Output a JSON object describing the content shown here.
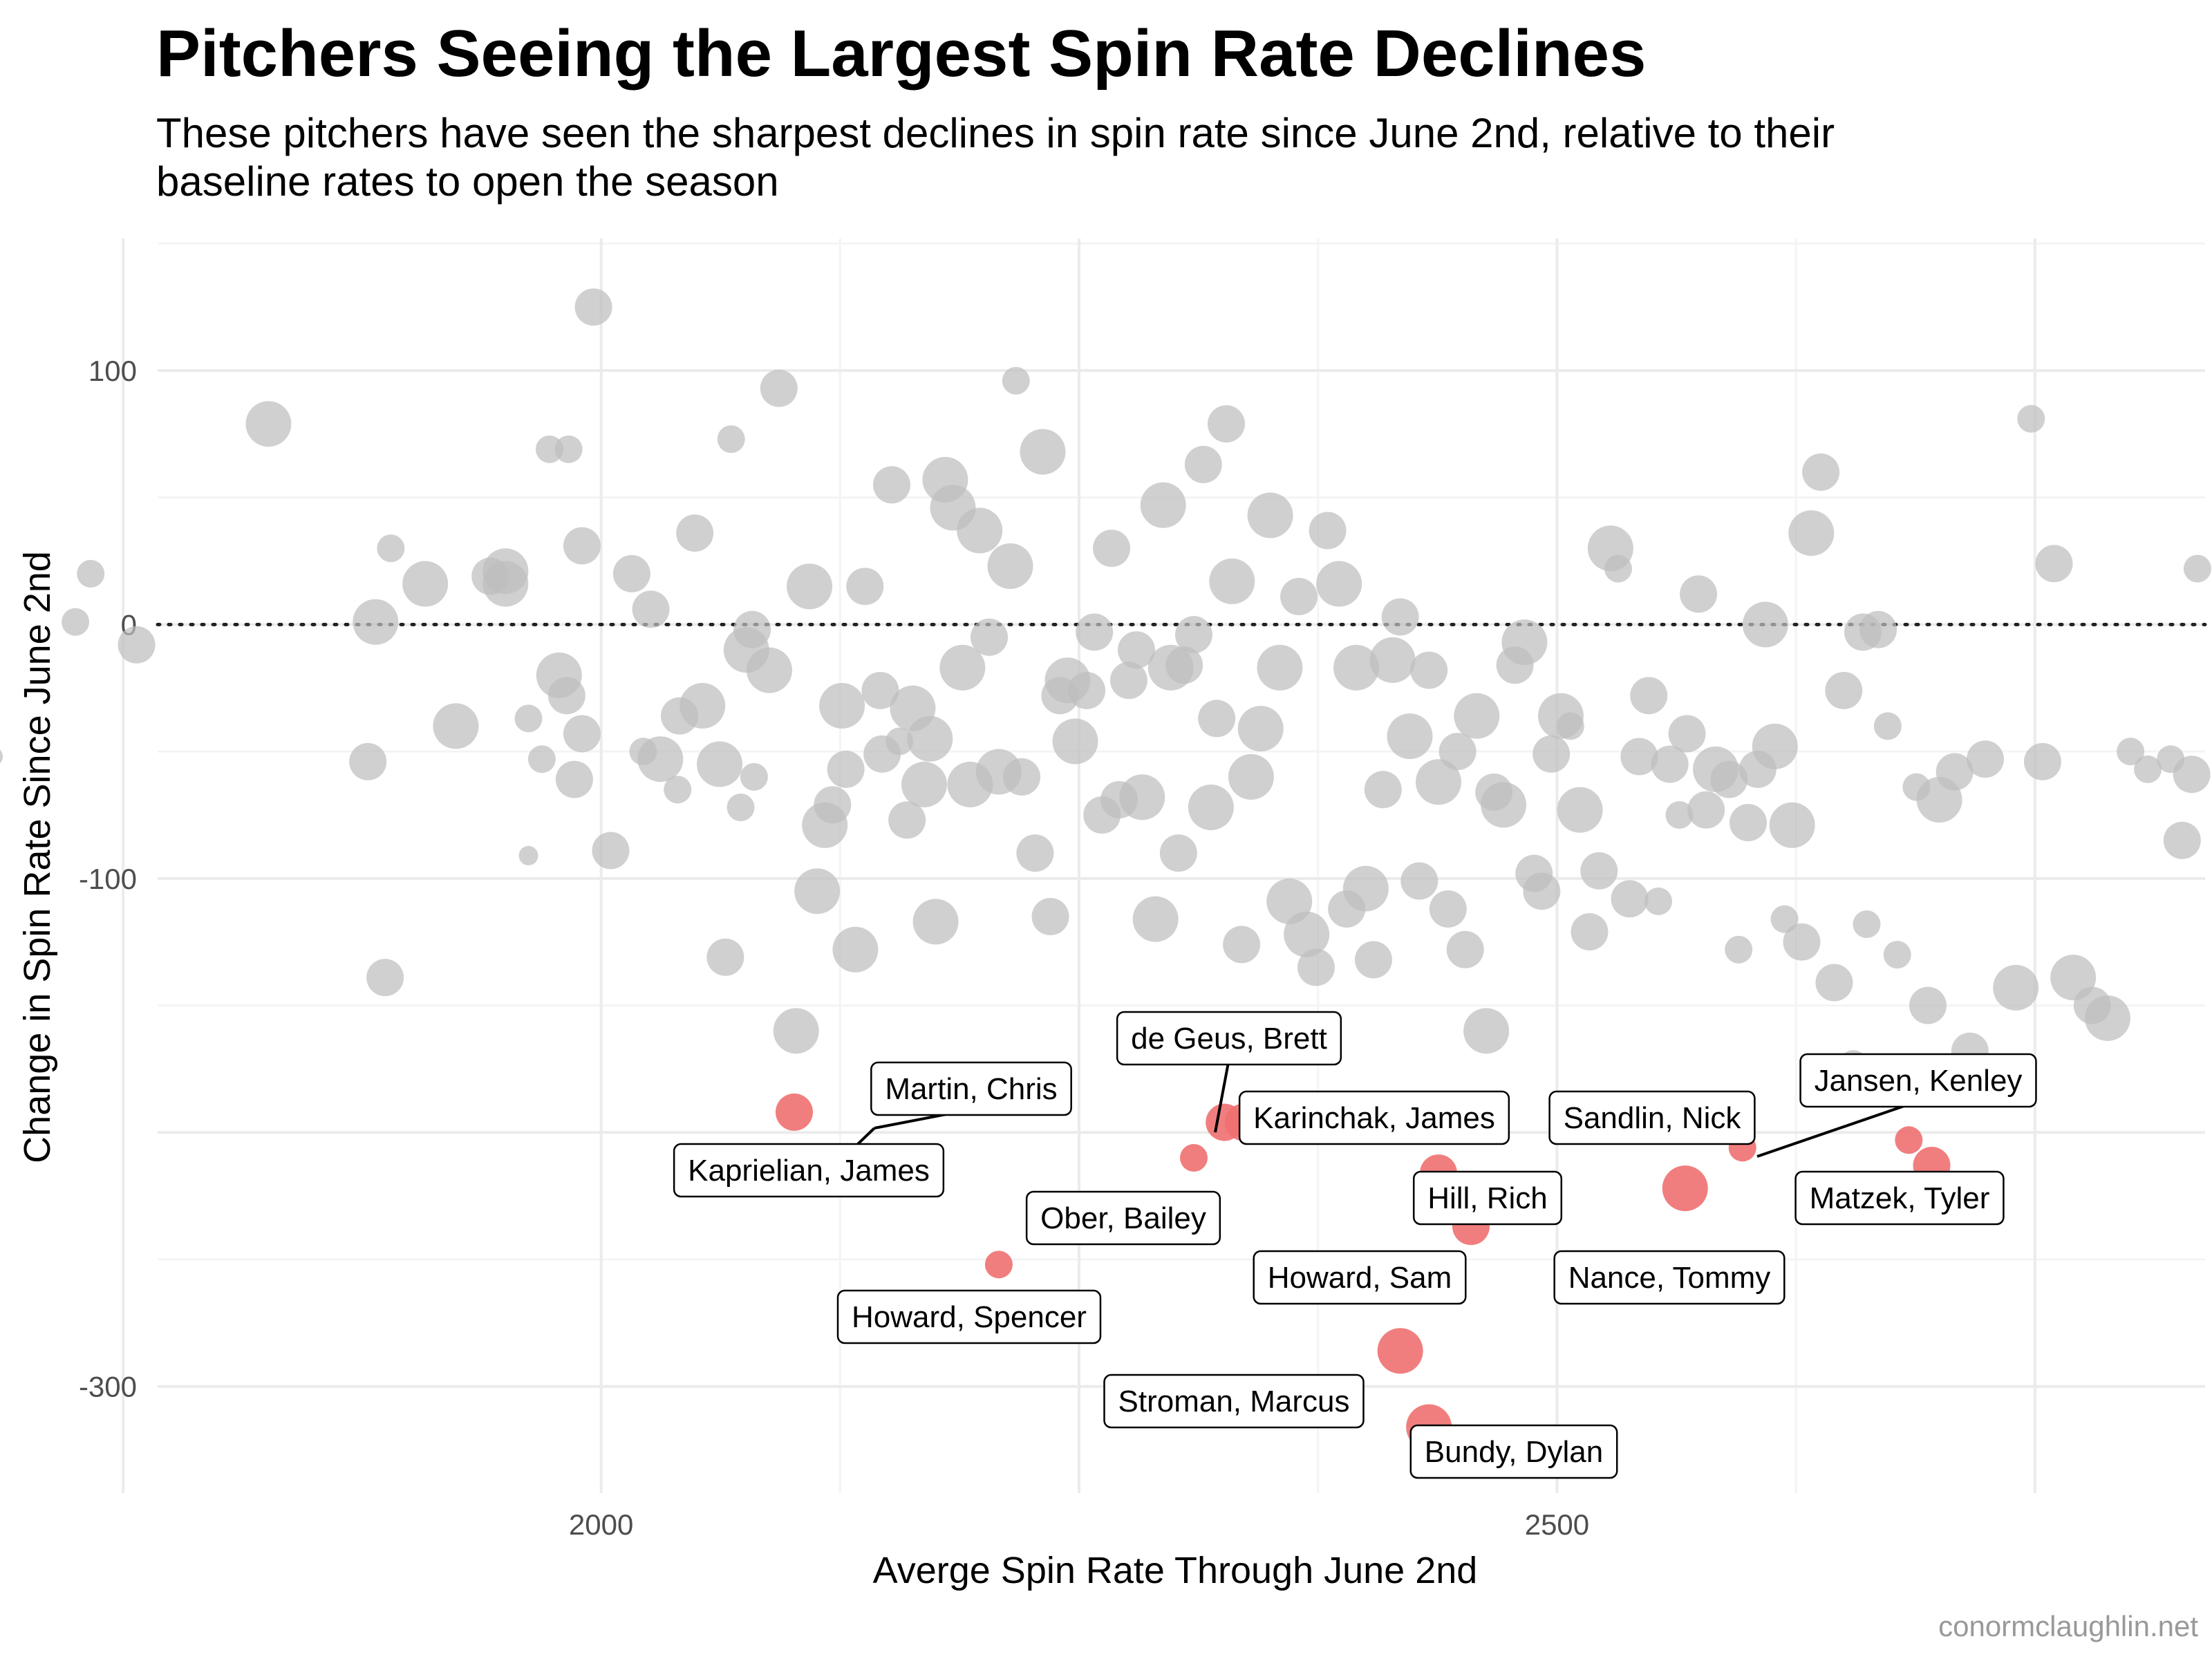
{
  "chart_data": {
    "type": "scatter",
    "title": "Pitchers Seeing the Largest Spin Rate Declines",
    "subtitle_lines": [
      "These pitchers have seen the sharpest declines in spin rate since June 2nd, relative to their",
      "baseline rates to open the season"
    ],
    "xlabel": "Averge Spin Rate Through June 2nd",
    "ylabel": "Change in Spin Rate Since June 2nd",
    "caption": "conormclaughlin.net",
    "xlim": [
      1768,
      2839
    ],
    "ylim": [
      -342,
      152
    ],
    "x_ticks": [
      2000,
      2500
    ],
    "x_tick_labels": [
      "2000",
      "2500"
    ],
    "y_ticks": [
      100,
      0,
      -100,
      -300
    ],
    "y_tick_labels": [
      "100",
      "0",
      "-100",
      "-300"
    ],
    "grid": true,
    "reference_line_y": 0,
    "colors": {
      "background": "#ffffff",
      "others": "#bebebe",
      "highlight": "#f07070",
      "grid_major": "#ebebeb",
      "grid_minor": "#f4f4f4"
    },
    "others": [
      [
        1682,
        -52,
        1
      ],
      [
        1725,
        1,
        2
      ],
      [
        1733,
        20,
        2
      ],
      [
        1757,
        -8,
        3
      ],
      [
        1826,
        79,
        4
      ],
      [
        1878,
        -54,
        3
      ],
      [
        1882,
        1,
        4
      ],
      [
        1887,
        -139,
        3
      ],
      [
        1890,
        30,
        2
      ],
      [
        1908,
        16,
        4
      ],
      [
        1924,
        -40,
        4
      ],
      [
        1942,
        19,
        3
      ],
      [
        1950,
        21,
        4
      ],
      [
        1962,
        -37,
        2
      ],
      [
        1969,
        -53,
        2
      ],
      [
        1973,
        69,
        2
      ],
      [
        1978,
        -20,
        4
      ],
      [
        1982,
        -28,
        3
      ],
      [
        1983,
        69,
        2
      ],
      [
        1986,
        -61,
        3
      ],
      [
        1990,
        -43,
        3
      ],
      [
        1990,
        31,
        3
      ],
      [
        1996,
        125,
        3
      ],
      [
        1962,
        -91,
        1
      ],
      [
        1950,
        16,
        4
      ],
      [
        2005,
        -89,
        3
      ],
      [
        2016,
        20,
        3
      ],
      [
        2022,
        -50,
        2
      ],
      [
        2026,
        6,
        3
      ],
      [
        2031,
        -53,
        4
      ],
      [
        2040,
        -65,
        2
      ],
      [
        2041,
        -36,
        3
      ],
      [
        2049,
        36,
        3
      ],
      [
        2053,
        -32,
        4
      ],
      [
        2062,
        -55,
        4
      ],
      [
        2065,
        -131,
        3
      ],
      [
        2068,
        73,
        2
      ],
      [
        2073,
        -72,
        2
      ],
      [
        2076,
        -10,
        4
      ],
      [
        2079,
        -2,
        3
      ],
      [
        2080,
        -60,
        2
      ],
      [
        2088,
        -18,
        4
      ],
      [
        2093,
        93,
        3
      ],
      [
        2102,
        -160,
        4
      ],
      [
        2109,
        15,
        4
      ],
      [
        2113,
        -105,
        4
      ],
      [
        2117,
        -79,
        4
      ],
      [
        2121,
        -71,
        3
      ],
      [
        2126,
        -32,
        4
      ],
      [
        2128,
        -57,
        3
      ],
      [
        2133,
        -128,
        4
      ],
      [
        2138,
        15,
        3
      ],
      [
        2146,
        -26,
        3
      ],
      [
        2147,
        -51,
        3
      ],
      [
        2152,
        55,
        3
      ],
      [
        2156,
        -46,
        2
      ],
      [
        2160,
        -77,
        3
      ],
      [
        2163,
        -33,
        4
      ],
      [
        2169,
        -63,
        4
      ],
      [
        2172,
        -45,
        4
      ],
      [
        2175,
        -117,
        4
      ],
      [
        2180,
        57,
        4
      ],
      [
        2184,
        46,
        4
      ],
      [
        2189,
        -17,
        4
      ],
      [
        2193,
        -63,
        4
      ],
      [
        2198,
        37,
        4
      ],
      [
        2203,
        -5,
        3
      ],
      [
        2208,
        -58,
        4
      ],
      [
        2214,
        23,
        4
      ],
      [
        2217,
        96,
        2
      ],
      [
        2220,
        -60,
        3
      ],
      [
        2227,
        -90,
        3
      ],
      [
        2231,
        68,
        4
      ],
      [
        2235,
        -115,
        3
      ],
      [
        2240,
        -28,
        3
      ],
      [
        2244,
        -22,
        4
      ],
      [
        2248,
        -46,
        4
      ],
      [
        2254,
        -26,
        3
      ],
      [
        2258,
        -3,
        3
      ],
      [
        2262,
        -75,
        3
      ],
      [
        2267,
        30,
        3
      ],
      [
        2271,
        -69,
        3
      ],
      [
        2276,
        -22,
        3
      ],
      [
        2280,
        -10,
        3
      ],
      [
        2283,
        -68,
        4
      ],
      [
        2290,
        -116,
        4
      ],
      [
        2294,
        47,
        4
      ],
      [
        2298,
        -17,
        4
      ],
      [
        2302,
        -90,
        3
      ],
      [
        2305,
        -16,
        3
      ],
      [
        2310,
        -4,
        3
      ],
      [
        2315,
        63,
        3
      ],
      [
        2319,
        -72,
        4
      ],
      [
        2322,
        -37,
        3
      ],
      [
        2327,
        79,
        3
      ],
      [
        2330,
        17,
        4
      ],
      [
        2335,
        -126,
        3
      ],
      [
        2340,
        -60,
        4
      ],
      [
        2345,
        -41,
        4
      ],
      [
        2350,
        43,
        4
      ],
      [
        2355,
        -17,
        4
      ],
      [
        2360,
        -109,
        4
      ],
      [
        2365,
        11,
        3
      ],
      [
        2369,
        -122,
        4
      ],
      [
        2374,
        -135,
        3
      ],
      [
        2380,
        37,
        3
      ],
      [
        2386,
        16,
        4
      ],
      [
        2390,
        -112,
        3
      ],
      [
        2395,
        -17,
        4
      ],
      [
        2400,
        -104,
        4
      ],
      [
        2404,
        -132,
        3
      ],
      [
        2409,
        -65,
        3
      ],
      [
        2414,
        -14,
        4
      ],
      [
        2418,
        3,
        3
      ],
      [
        2423,
        -44,
        4
      ],
      [
        2428,
        -101,
        3
      ],
      [
        2433,
        -18,
        3
      ],
      [
        2438,
        -62,
        4
      ],
      [
        2443,
        -112,
        3
      ],
      [
        2448,
        -50,
        3
      ],
      [
        2452,
        -128,
        3
      ],
      [
        2458,
        -36,
        4
      ],
      [
        2463,
        -160,
        4
      ],
      [
        2467,
        -66,
        3
      ],
      [
        2472,
        -71,
        4
      ],
      [
        2478,
        -16,
        3
      ],
      [
        2483,
        -7,
        4
      ],
      [
        2488,
        -98,
        3
      ],
      [
        2492,
        -105,
        3
      ],
      [
        2497,
        -51,
        3
      ],
      [
        2502,
        -36,
        4
      ],
      [
        2507,
        -40,
        2
      ],
      [
        2512,
        -73,
        4
      ],
      [
        2517,
        -121,
        3
      ],
      [
        2522,
        -97,
        3
      ],
      [
        2528,
        30,
        4
      ],
      [
        2532,
        22,
        2
      ],
      [
        2538,
        -108,
        3
      ],
      [
        2543,
        -52,
        3
      ],
      [
        2548,
        -28,
        3
      ],
      [
        2553,
        -109,
        2
      ],
      [
        2559,
        -55,
        3
      ],
      [
        2564,
        -75,
        2
      ],
      [
        2568,
        -43,
        3
      ],
      [
        2574,
        12,
        3
      ],
      [
        2578,
        -73,
        3
      ],
      [
        2583,
        -57,
        4
      ],
      [
        2590,
        -61,
        3
      ],
      [
        2595,
        -128,
        2
      ],
      [
        2600,
        -78,
        3
      ],
      [
        2605,
        -57,
        3
      ],
      [
        2609,
        0,
        4
      ],
      [
        2614,
        -48,
        4
      ],
      [
        2619,
        -116,
        2
      ],
      [
        2623,
        -79,
        4
      ],
      [
        2628,
        -125,
        3
      ],
      [
        2633,
        36,
        4
      ],
      [
        2638,
        60,
        3
      ],
      [
        2645,
        -141,
        3
      ],
      [
        2650,
        -26,
        3
      ],
      [
        2655,
        -173,
        2
      ],
      [
        2660,
        -3,
        3
      ],
      [
        2662,
        -118,
        2
      ],
      [
        2668,
        -2,
        3
      ],
      [
        2673,
        -40,
        2
      ],
      [
        2678,
        -130,
        2
      ],
      [
        2688,
        -64,
        2
      ],
      [
        2694,
        -150,
        3
      ],
      [
        2700,
        -69,
        4
      ],
      [
        2708,
        -58,
        3
      ],
      [
        2716,
        -168,
        3
      ],
      [
        2724,
        -53,
        3
      ],
      [
        2740,
        -143,
        4
      ],
      [
        2748,
        81,
        2
      ],
      [
        2754,
        -54,
        3
      ],
      [
        2760,
        24,
        3
      ],
      [
        2770,
        -139,
        4
      ],
      [
        2780,
        -150,
        3
      ],
      [
        2788,
        -155,
        4
      ],
      [
        2800,
        -50,
        2
      ],
      [
        2809,
        -57,
        2
      ],
      [
        2821,
        -53,
        2
      ],
      [
        2827,
        -85,
        3
      ],
      [
        2832,
        -59,
        3
      ],
      [
        2835,
        22,
        2
      ]
    ],
    "highlights": [
      {
        "name": "Martin, Chris",
        "x": 2101,
        "y": -192,
        "size": 3
      },
      {
        "name": "Kaprielian, James",
        "x": 2101,
        "y": -192,
        "size": 3
      },
      {
        "name": "de Geus, Brett",
        "x": 2326,
        "y": -196,
        "size": 3
      },
      {
        "name": "Karinchak, James",
        "x": 2336,
        "y": -196,
        "size": 3
      },
      {
        "name": "Ober, Bailey",
        "x": 2310,
        "y": -210,
        "size": 2
      },
      {
        "name": "Howard, Spencer",
        "x": 2208,
        "y": -252,
        "size": 2
      },
      {
        "name": "Hill, Rich",
        "x": 2438,
        "y": -216,
        "size": 3
      },
      {
        "name": "Howard, Sam",
        "x": 2455,
        "y": -237,
        "size": 3
      },
      {
        "name": "Stroman, Marcus",
        "x": 2418,
        "y": -286,
        "size": 4
      },
      {
        "name": "Bundy, Dylan",
        "x": 2433,
        "y": -316,
        "size": 4
      },
      {
        "name": "Sandlin, Nick",
        "x": 2597,
        "y": -206,
        "size": 2
      },
      {
        "name": "Nance, Tommy",
        "x": 2567,
        "y": -222,
        "size": 4
      },
      {
        "name": "Jansen, Kenley",
        "x": 2684,
        "y": -203,
        "size": 2
      },
      {
        "name": "Matzek, Tyler",
        "x": 2696,
        "y": -213,
        "size": 3
      }
    ]
  }
}
